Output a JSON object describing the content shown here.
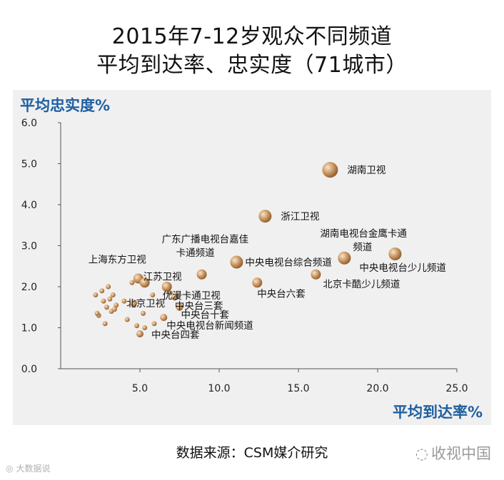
{
  "header": {
    "title_line1": "2015年7-12岁观众不同频道",
    "title_line2": "平均到达率、忠实度（71城市）"
  },
  "footer": {
    "source": "数据来源：CSM媒介研究",
    "watermark_right": "收视中国",
    "watermark_left": "大数据说"
  },
  "chart_data": {
    "type": "scatter",
    "xlabel": "平均到达率%",
    "ylabel": "平均忠实度%",
    "xlim": [
      0,
      25
    ],
    "ylim": [
      0,
      6
    ],
    "x_ticks": [
      "5.0",
      "10.0",
      "15.0",
      "20.0",
      "25.0"
    ],
    "y_ticks": [
      "0.0",
      "1.0",
      "2.0",
      "3.0",
      "4.0",
      "5.0",
      "6.0"
    ],
    "grid": false,
    "colors": {
      "bubble": "#c9955f",
      "bubble_highlight": "#f6e4cc",
      "axis": "#555555",
      "label_blue": "#1f5fa0"
    },
    "labeled_points": [
      {
        "name": "湖南卫视",
        "x": 17.0,
        "y": 4.85
      },
      {
        "name": "浙江卫视",
        "x": 12.9,
        "y": 3.72
      },
      {
        "name": "湖南电视台金鹰卡通频道",
        "x": 17.9,
        "y": 2.7
      },
      {
        "name": "中央电视台少儿频道",
        "x": 21.1,
        "y": 2.8
      },
      {
        "name": "中央电视台综合频道",
        "x": 11.1,
        "y": 2.6
      },
      {
        "name": "北京卡酷少儿频道",
        "x": 16.1,
        "y": 2.3
      },
      {
        "name": "广东广播电视台嘉佳卡通频道",
        "x": 8.9,
        "y": 2.3
      },
      {
        "name": "中央台六套",
        "x": 12.4,
        "y": 2.1
      },
      {
        "name": "上海东方卫视",
        "x": 4.9,
        "y": 2.2
      },
      {
        "name": "江苏卫视",
        "x": 5.3,
        "y": 2.1
      },
      {
        "name": "优漫卡通卫视",
        "x": 6.7,
        "y": 2.0
      },
      {
        "name": "中央台三套",
        "x": 7.2,
        "y": 1.75
      },
      {
        "name": "北京卫视",
        "x": 4.6,
        "y": 1.6
      },
      {
        "name": "中央台十套",
        "x": 7.5,
        "y": 1.5
      },
      {
        "name": "中央电视台新闻频道",
        "x": 6.5,
        "y": 1.25
      },
      {
        "name": "中央台四套",
        "x": 5.0,
        "y": 0.85
      }
    ],
    "other_points": [
      {
        "x": 2.2,
        "y": 1.8
      },
      {
        "x": 2.6,
        "y": 1.9
      },
      {
        "x": 3.0,
        "y": 2.0
      },
      {
        "x": 2.7,
        "y": 1.65
      },
      {
        "x": 3.1,
        "y": 1.7
      },
      {
        "x": 3.3,
        "y": 1.8
      },
      {
        "x": 2.9,
        "y": 1.5
      },
      {
        "x": 3.5,
        "y": 1.55
      },
      {
        "x": 3.2,
        "y": 1.4
      },
      {
        "x": 2.4,
        "y": 1.3
      },
      {
        "x": 2.8,
        "y": 1.1
      },
      {
        "x": 2.3,
        "y": 1.35
      },
      {
        "x": 3.4,
        "y": 1.45
      },
      {
        "x": 4.2,
        "y": 1.2
      },
      {
        "x": 4.8,
        "y": 1.05
      },
      {
        "x": 5.3,
        "y": 1.0
      },
      {
        "x": 5.9,
        "y": 1.1
      },
      {
        "x": 4.5,
        "y": 2.1
      },
      {
        "x": 5.8,
        "y": 1.8
      },
      {
        "x": 6.9,
        "y": 1.85
      },
      {
        "x": 5.2,
        "y": 1.35
      },
      {
        "x": 4.0,
        "y": 1.65
      }
    ]
  }
}
